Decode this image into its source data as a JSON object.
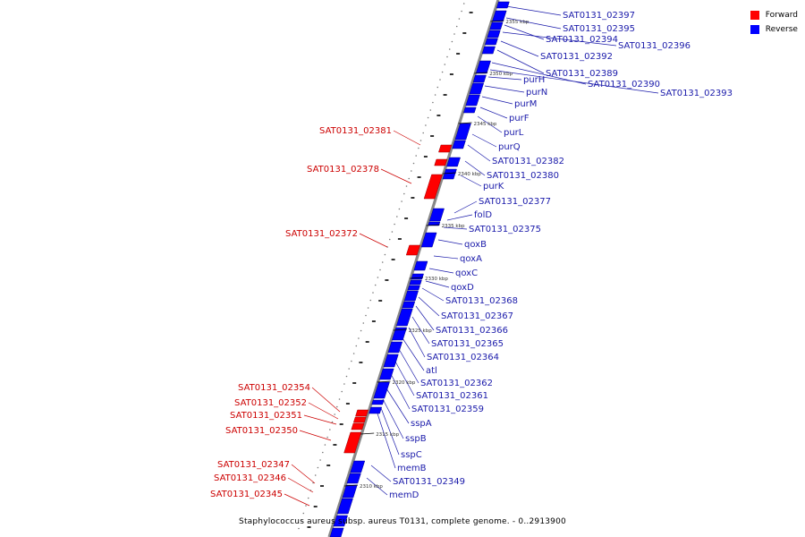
{
  "caption": "Staphylococcus aureus subsp. aureus T0131, complete genome. - 0..2913900",
  "legend": [
    {
      "label": "Forward",
      "color": "#ff0000"
    },
    {
      "label": "Reverse",
      "color": "#0000ff"
    }
  ],
  "colors": {
    "forward": "#ff0000",
    "reverse": "#0000ff",
    "backbone": "#888888",
    "label_forward": "#cc0000",
    "label_reverse": "#1a1aaa"
  },
  "ticks": [
    "2355 kbp",
    "2350 kbp",
    "2345 kbp",
    "2340 kbp",
    "2335 kbp",
    "2330 kbp",
    "2325 kbp",
    "2320 kbp",
    "2315 kbp",
    "2310 kbp"
  ],
  "reverse_genes": [
    "SAT0131_02397",
    "SAT0131_02395",
    "SAT0131_02394",
    "SAT0131_02396",
    "SAT0131_02392",
    "SAT0131_02389",
    "SAT0131_02390",
    "SAT0131_02393",
    "purH",
    "purN",
    "purM",
    "purF",
    "purL",
    "purQ",
    "SAT0131_02382",
    "SAT0131_02380",
    "purK",
    "SAT0131_02377",
    "folD",
    "SAT0131_02375",
    "qoxB",
    "qoxA",
    "qoxC",
    "qoxD",
    "SAT0131_02368",
    "SAT0131_02367",
    "SAT0131_02366",
    "SAT0131_02365",
    "SAT0131_02364",
    "atl",
    "SAT0131_02362",
    "SAT0131_02361",
    "SAT0131_02359",
    "sspA",
    "sspB",
    "sspC",
    "memB",
    "SAT0131_02349",
    "memD"
  ],
  "forward_genes": [
    "SAT0131_02381",
    "SAT0131_02378",
    "SAT0131_02372",
    "SAT0131_02354",
    "SAT0131_02352",
    "SAT0131_02351",
    "SAT0131_02350",
    "SAT0131_02347",
    "SAT0131_02346",
    "SAT0131_02345"
  ]
}
